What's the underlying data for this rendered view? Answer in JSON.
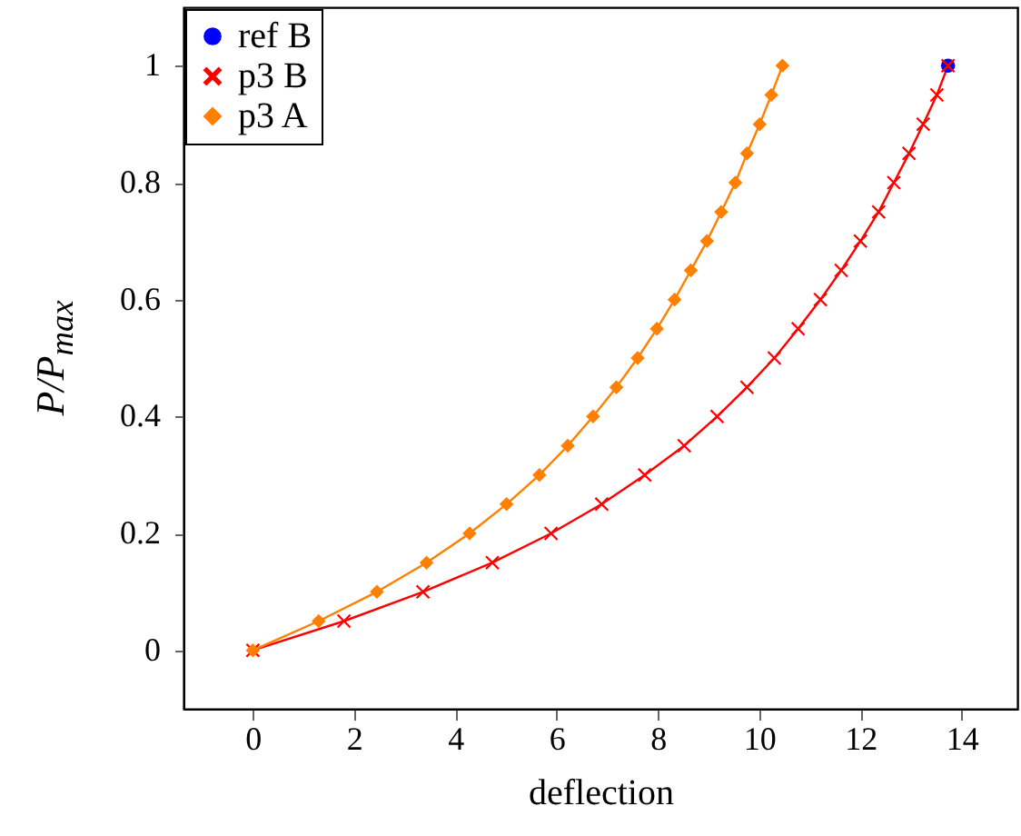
{
  "chart_data": {
    "type": "line",
    "xlabel": "deflection",
    "ylabel": "P/P$_{max}$",
    "xlim": [
      -1.37,
      15.1
    ],
    "ylim": [
      -0.1,
      1.1
    ],
    "xticks": [
      0,
      2,
      4,
      6,
      8,
      10,
      12,
      14
    ],
    "yticks": [
      0,
      0.2,
      0.4,
      0.6,
      0.8,
      1
    ],
    "legend": "top left",
    "line_style": "solid",
    "series": [
      {
        "name": "ref B",
        "color": "#0000ff",
        "marker": "circle",
        "x": [
          13.73
        ],
        "values": [
          1
        ]
      },
      {
        "name": "p3 B",
        "color": "#ff0000",
        "marker": "cross",
        "x": [
          0,
          1.8,
          3.36,
          4.73,
          5.89,
          6.89,
          7.74,
          8.52,
          9.17,
          9.76,
          10.3,
          10.77,
          11.21,
          11.62,
          12.0,
          12.36,
          12.66,
          12.96,
          13.24,
          13.51,
          13.73
        ],
        "values": [
          0,
          0.05,
          0.1,
          0.15,
          0.2,
          0.25,
          0.3,
          0.35,
          0.4,
          0.45,
          0.5,
          0.55,
          0.6,
          0.65,
          0.7,
          0.75,
          0.8,
          0.85,
          0.9,
          0.95,
          1
        ]
      },
      {
        "name": "p3 A",
        "color": "#ff8000",
        "marker": "diamond",
        "x": [
          0,
          1.3,
          2.45,
          3.43,
          4.28,
          5.01,
          5.66,
          6.22,
          6.72,
          7.18,
          7.6,
          7.98,
          8.33,
          8.65,
          8.97,
          9.25,
          9.53,
          9.76,
          10.01,
          10.24,
          10.46
        ],
        "values": [
          0,
          0.05,
          0.1,
          0.15,
          0.2,
          0.25,
          0.3,
          0.35,
          0.4,
          0.45,
          0.5,
          0.55,
          0.6,
          0.65,
          0.7,
          0.75,
          0.8,
          0.85,
          0.9,
          0.95,
          1
        ]
      }
    ]
  }
}
